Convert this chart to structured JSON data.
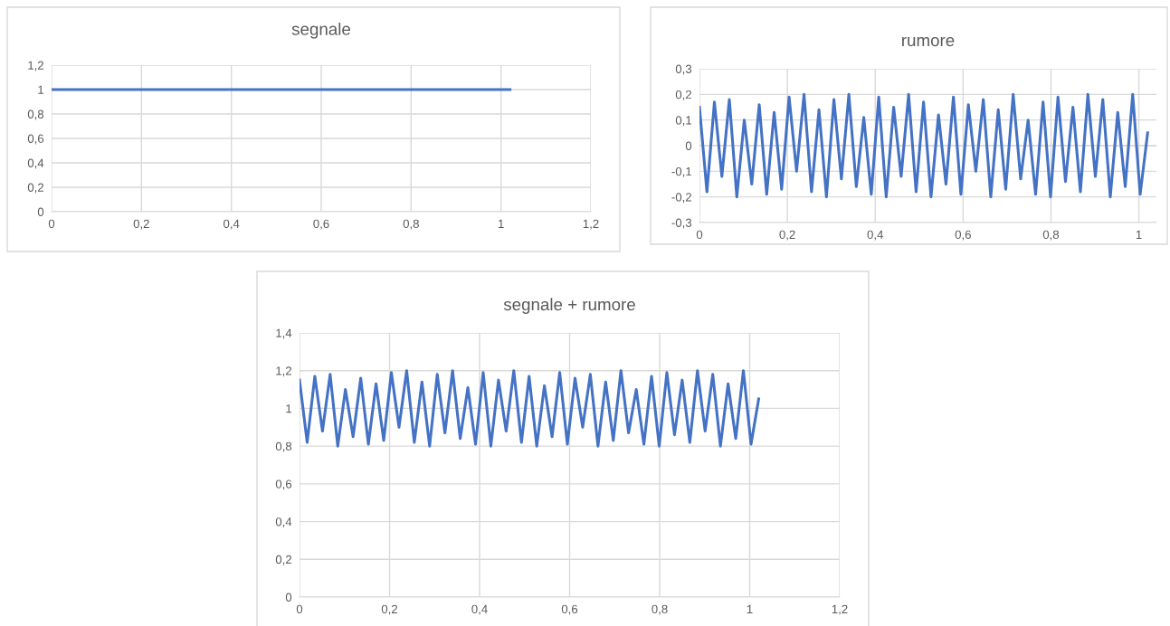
{
  "chart_data": [
    {
      "type": "line",
      "title": "segnale",
      "xlim": [
        0,
        1.2
      ],
      "ylim": [
        0,
        1.2
      ],
      "grid": true,
      "xticks": [
        0,
        {
          "value": 0.2,
          "label": "0,2"
        },
        {
          "value": 0.4,
          "label": "0,4"
        },
        {
          "value": 0.6,
          "label": "0,6"
        },
        {
          "value": 0.8,
          "label": "0,8"
        },
        1,
        {
          "value": 1.2,
          "label": "1,2"
        }
      ],
      "yticks": [
        0,
        {
          "value": 0.2,
          "label": "0,2"
        },
        {
          "value": 0.4,
          "label": "0,4"
        },
        {
          "value": 0.6,
          "label": "0,6"
        },
        {
          "value": 0.8,
          "label": "0,8"
        },
        1,
        {
          "value": 1.2,
          "label": "1,2"
        }
      ],
      "series": [
        {
          "color": "#4472c4",
          "x": [
            0,
            1.02
          ],
          "values": [
            1,
            1
          ]
        }
      ]
    },
    {
      "type": "line",
      "title": "rumore",
      "xlim": [
        0,
        1.04
      ],
      "ylim": [
        -0.3,
        0.3
      ],
      "grid": true,
      "xticks": [
        0,
        {
          "value": 0.2,
          "label": "0,2"
        },
        {
          "value": 0.4,
          "label": "0,4"
        },
        {
          "value": 0.6,
          "label": "0,6"
        },
        {
          "value": 0.8,
          "label": "0,8"
        },
        1
      ],
      "yticks": [
        {
          "value": -0.3,
          "label": "-0,3"
        },
        {
          "value": -0.2,
          "label": "-0,2"
        },
        {
          "value": -0.1,
          "label": "-0,1"
        },
        0,
        {
          "value": 0.1,
          "label": "0,1"
        },
        {
          "value": 0.2,
          "label": "0,2"
        },
        {
          "value": 0.3,
          "label": "0,3"
        }
      ],
      "series": [
        {
          "color": "#4472c4",
          "x": [
            0,
            0.017,
            0.034,
            0.051,
            0.068,
            0.085,
            0.102,
            0.119,
            0.136,
            0.153,
            0.17,
            0.187,
            0.204,
            0.221,
            0.238,
            0.255,
            0.272,
            0.289,
            0.306,
            0.323,
            0.34,
            0.357,
            0.374,
            0.391,
            0.408,
            0.425,
            0.442,
            0.459,
            0.476,
            0.493,
            0.51,
            0.527,
            0.544,
            0.561,
            0.578,
            0.595,
            0.612,
            0.629,
            0.646,
            0.663,
            0.68,
            0.697,
            0.714,
            0.731,
            0.748,
            0.765,
            0.782,
            0.799,
            0.816,
            0.833,
            0.85,
            0.867,
            0.884,
            0.901,
            0.918,
            0.935,
            0.952,
            0.969,
            0.986,
            1.003,
            1.02
          ],
          "values": [
            0.15,
            -0.18,
            0.17,
            -0.12,
            0.18,
            -0.2,
            0.1,
            -0.15,
            0.16,
            -0.19,
            0.13,
            -0.17,
            0.19,
            -0.1,
            0.2,
            -0.18,
            0.14,
            -0.2,
            0.18,
            -0.13,
            0.2,
            -0.16,
            0.11,
            -0.19,
            0.19,
            -0.2,
            0.15,
            -0.12,
            0.2,
            -0.18,
            0.17,
            -0.2,
            0.12,
            -0.15,
            0.19,
            -0.19,
            0.16,
            -0.1,
            0.18,
            -0.2,
            0.14,
            -0.17,
            0.2,
            -0.13,
            0.1,
            -0.19,
            0.17,
            -0.2,
            0.19,
            -0.14,
            0.15,
            -0.18,
            0.2,
            -0.12,
            0.18,
            -0.2,
            0.13,
            -0.16,
            0.2,
            -0.19,
            0.05
          ]
        }
      ]
    },
    {
      "type": "line",
      "title": "segnale + rumore",
      "xlim": [
        0,
        1.2
      ],
      "ylim": [
        0,
        1.4
      ],
      "grid": true,
      "xticks": [
        0,
        {
          "value": 0.2,
          "label": "0,2"
        },
        {
          "value": 0.4,
          "label": "0,4"
        },
        {
          "value": 0.6,
          "label": "0,6"
        },
        {
          "value": 0.8,
          "label": "0,8"
        },
        1,
        {
          "value": 1.2,
          "label": "1,2"
        }
      ],
      "yticks": [
        0,
        {
          "value": 0.2,
          "label": "0,2"
        },
        {
          "value": 0.4,
          "label": "0,4"
        },
        {
          "value": 0.6,
          "label": "0,6"
        },
        {
          "value": 0.8,
          "label": "0,8"
        },
        1,
        {
          "value": 1.2,
          "label": "1,2"
        },
        {
          "value": 1.4,
          "label": "1,4"
        }
      ],
      "series": [
        {
          "color": "#4472c4",
          "x": [
            0,
            0.017,
            0.034,
            0.051,
            0.068,
            0.085,
            0.102,
            0.119,
            0.136,
            0.153,
            0.17,
            0.187,
            0.204,
            0.221,
            0.238,
            0.255,
            0.272,
            0.289,
            0.306,
            0.323,
            0.34,
            0.357,
            0.374,
            0.391,
            0.408,
            0.425,
            0.442,
            0.459,
            0.476,
            0.493,
            0.51,
            0.527,
            0.544,
            0.561,
            0.578,
            0.595,
            0.612,
            0.629,
            0.646,
            0.663,
            0.68,
            0.697,
            0.714,
            0.731,
            0.748,
            0.765,
            0.782,
            0.799,
            0.816,
            0.833,
            0.85,
            0.867,
            0.884,
            0.901,
            0.918,
            0.935,
            0.952,
            0.969,
            0.986,
            1.003,
            1.02
          ],
          "values": [
            1.15,
            0.82,
            1.17,
            0.88,
            1.18,
            0.8,
            1.1,
            0.85,
            1.16,
            0.81,
            1.13,
            0.83,
            1.19,
            0.9,
            1.2,
            0.82,
            1.14,
            0.8,
            1.18,
            0.87,
            1.2,
            0.84,
            1.11,
            0.81,
            1.19,
            0.8,
            1.15,
            0.88,
            1.2,
            0.82,
            1.17,
            0.8,
            1.12,
            0.85,
            1.19,
            0.81,
            1.16,
            0.9,
            1.18,
            0.8,
            1.14,
            0.83,
            1.2,
            0.87,
            1.1,
            0.81,
            1.17,
            0.8,
            1.19,
            0.86,
            1.15,
            0.82,
            1.2,
            0.88,
            1.18,
            0.8,
            1.13,
            0.84,
            1.2,
            0.81,
            1.05
          ]
        }
      ]
    }
  ]
}
